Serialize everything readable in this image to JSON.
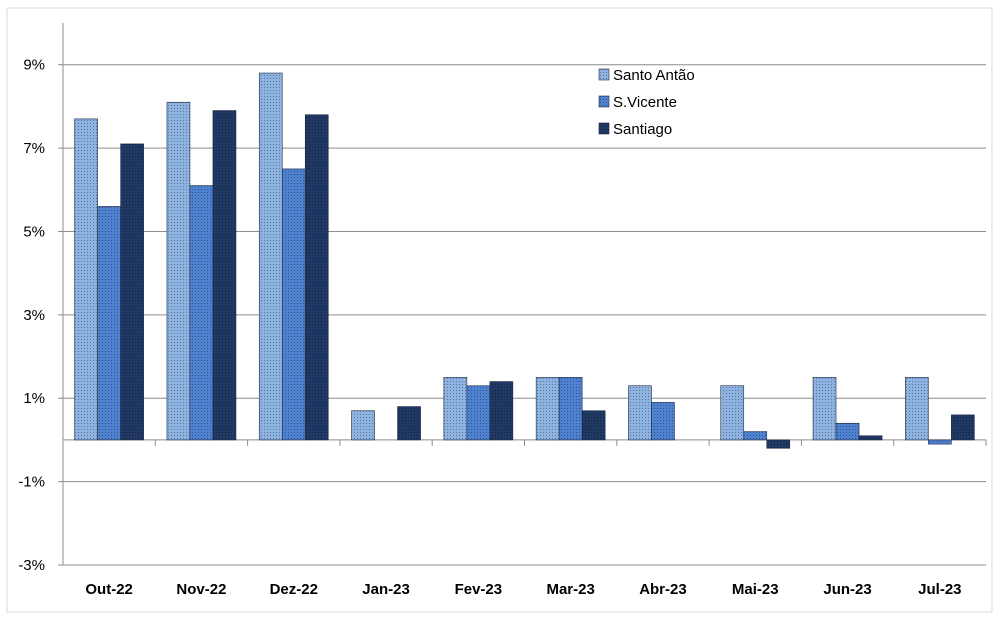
{
  "chart_data": {
    "type": "bar",
    "title": "",
    "xlabel": "",
    "ylabel": "",
    "categories": [
      "Out-22",
      "Nov-22",
      "Dez-22",
      "Jan-23",
      "Fev-23",
      "Mar-23",
      "Abr-23",
      "Mai-23",
      "Jun-23",
      "Jul-23"
    ],
    "y_ticks": [
      "9%",
      "7%",
      "5%",
      "3%",
      "1%",
      "-1%",
      "-3%"
    ],
    "ylim": [
      -3,
      10
    ],
    "grid": true,
    "legend_position": "top-right",
    "series": [
      {
        "name": "Santo Antão",
        "color": "#8db3e2",
        "values": [
          7.7,
          8.1,
          8.8,
          0.7,
          1.5,
          1.5,
          1.3,
          1.3,
          1.5,
          1.5
        ]
      },
      {
        "name": "S.Vicente",
        "color": "#4f81d1",
        "values": [
          5.6,
          6.1,
          6.5,
          0.0,
          1.3,
          1.5,
          0.9,
          0.2,
          0.4,
          -0.1
        ]
      },
      {
        "name": "Santiago",
        "color": "#1f3864",
        "values": [
          7.1,
          7.9,
          7.8,
          0.8,
          1.4,
          0.7,
          0.0,
          -0.2,
          0.1,
          0.6
        ]
      }
    ]
  }
}
